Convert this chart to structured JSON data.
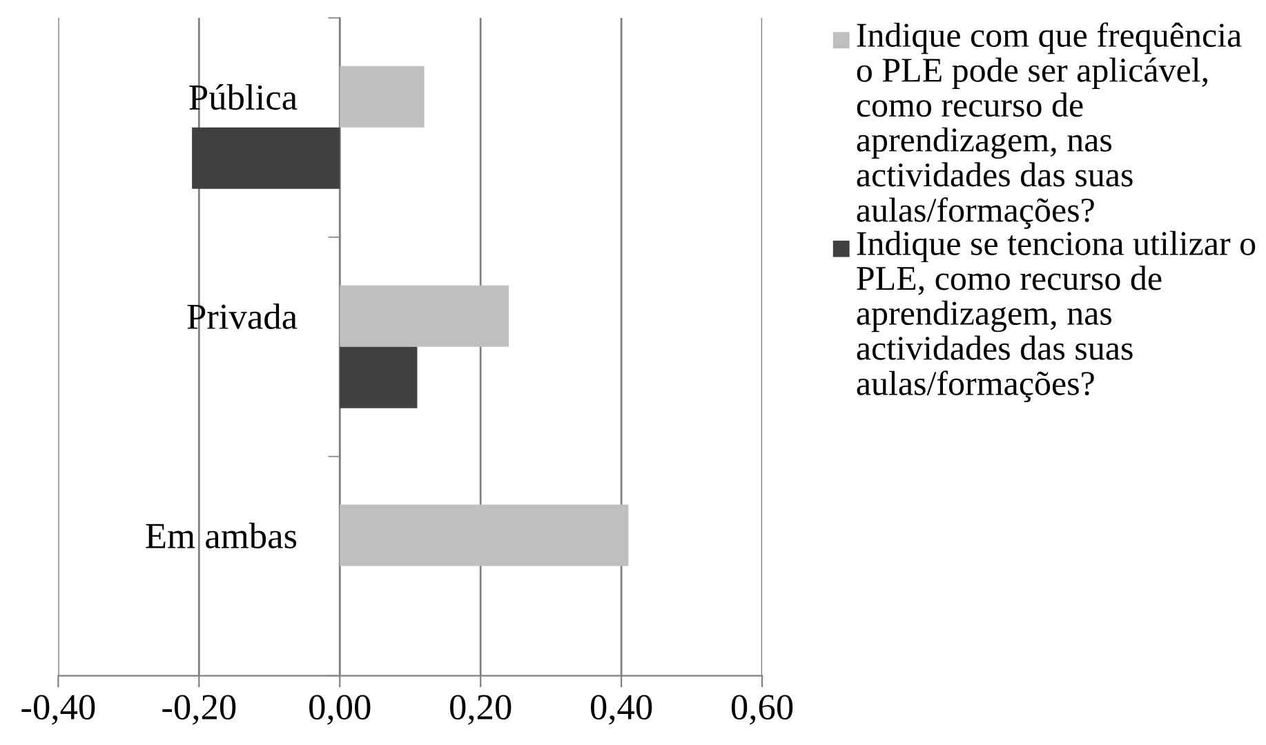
{
  "chart_data": {
    "type": "bar",
    "orientation": "horizontal",
    "categories": [
      "Pública",
      "Privada",
      "Em ambas"
    ],
    "series": [
      {
        "name": "Indique com que frequência o PLE pode ser aplicável, como recurso de aprendizagem, nas actividades das suas aulas/formações?",
        "color": "#bfbfbf",
        "values": [
          0.12,
          0.24,
          0.41
        ]
      },
      {
        "name": "Indique se tenciona utilizar o PLE, como recurso de aprendizagem, nas actividades das suas aulas/formações?",
        "color": "#404040",
        "values": [
          -0.21,
          0.11,
          0
        ]
      }
    ],
    "xlim": [
      -0.4,
      0.6
    ],
    "xticks": [
      {
        "value": -0.4,
        "label": "-0,40"
      },
      {
        "value": -0.2,
        "label": "-0,20"
      },
      {
        "value": 0,
        "label": "0,00"
      },
      {
        "value": 0.2,
        "label": "0,20"
      },
      {
        "value": 0.4,
        "label": "0,40"
      },
      {
        "value": 0.6,
        "label": "0,60"
      }
    ],
    "grid": "x",
    "legend": "right"
  }
}
